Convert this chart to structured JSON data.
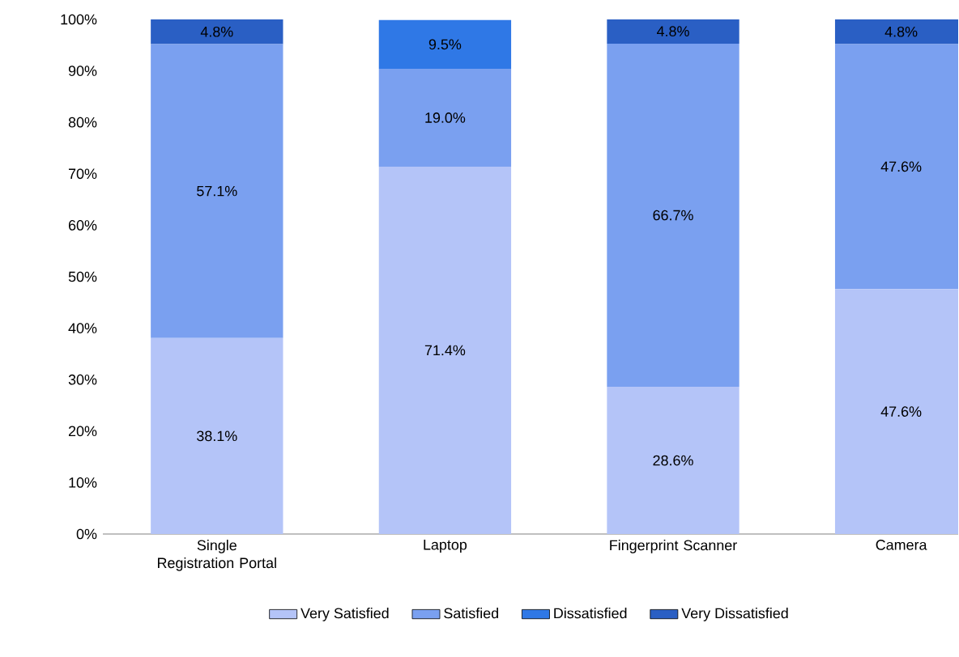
{
  "chart_data": {
    "type": "bar",
    "stacked": true,
    "categories": [
      "Single Registration Portal",
      "Laptop",
      "Fingerprint Scanner",
      "Camera"
    ],
    "series": [
      {
        "name": "Very Satisfied",
        "color": "#b4c4f8",
        "values": [
          38.1,
          71.4,
          28.6,
          47.6
        ],
        "value_labels": [
          "38.1%",
          "71.4%",
          "28.6%",
          "47.6%"
        ]
      },
      {
        "name": "Satisfied",
        "color": "#7aa0f0",
        "values": [
          57.1,
          19.0,
          66.7,
          47.6
        ],
        "value_labels": [
          "57.1%",
          "19.0%",
          "66.7%",
          "47.6%"
        ]
      },
      {
        "name": "Dissatisfied",
        "color": "#2f78e6",
        "values": [
          0,
          9.5,
          0,
          0
        ],
        "value_labels": [
          null,
          "9.5%",
          null,
          null
        ]
      },
      {
        "name": "Very Dissatisfied",
        "color": "#2a5fc4",
        "values": [
          4.8,
          0,
          4.8,
          4.8
        ],
        "value_labels": [
          "4.8%",
          null,
          "4.8%",
          "4.8%"
        ]
      }
    ],
    "ylim": [
      0,
      100
    ],
    "yticks": [
      {
        "value": 0,
        "label": "0%"
      },
      {
        "value": 10,
        "label": "10%"
      },
      {
        "value": 20,
        "label": "20%"
      },
      {
        "value": 30,
        "label": "30%"
      },
      {
        "value": 40,
        "label": "40%"
      },
      {
        "value": 50,
        "label": "50%"
      },
      {
        "value": 60,
        "label": "60%"
      },
      {
        "value": 70,
        "label": "70%"
      },
      {
        "value": 80,
        "label": "80%"
      },
      {
        "value": 90,
        "label": "90%"
      },
      {
        "value": 100,
        "label": "100%"
      }
    ],
    "legend": "bottom"
  }
}
